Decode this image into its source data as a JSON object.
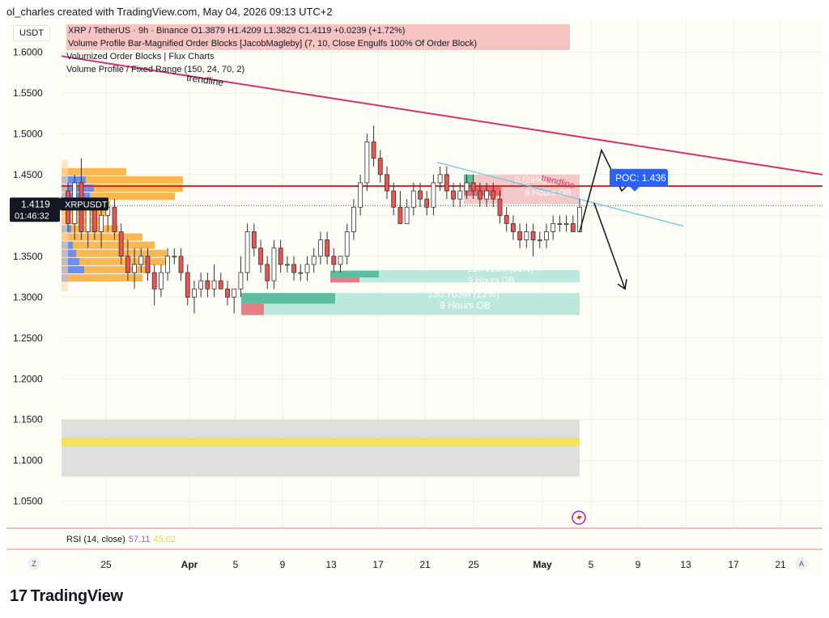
{
  "header": {
    "credit": "ol_charles created with TradingView.com, May 04, 2026 09:13 UTC+2"
  },
  "currency_button": "USDT",
  "legend": {
    "symbol_line": "XRP / TetherUS · 9h · Binance  O1.3879  H1.4209  L1.3829  C1.4119  +0.0239 (+1.72%)",
    "indicators": [
      "Volume Profile Bar-Magnified Order Blocks [JacobMagleby] (7, 10, Close Engulfs 100% Of Order Block)",
      "Volumized Order Blocks | Flux Charts",
      "Volume Profile / Fixed Range (150, 24, 70, 2)"
    ]
  },
  "price_tag": {
    "symbol": "XRPUSDT",
    "price": "1.4119",
    "countdown": "01:46:32"
  },
  "annotations": {
    "trendline_label": "trendline",
    "trendline_label2": "trendline",
    "poc": "POC: 1.436",
    "ob_top_text": "119.663M (60%)",
    "ob_top_sub": "9 Hours OB",
    "ob_bottom_text": "130.703M (22%)",
    "ob_bottom_sub": "9 Hours OB",
    "ob_red_text": "0.(24%)",
    "ob_red_sub": "9 Hours OB"
  },
  "rsi": {
    "label": "RSI (14, close)",
    "value1": "57.11",
    "value2": "45.02"
  },
  "buttons": {
    "left": "Z",
    "right": "A"
  },
  "footer": {
    "brand": "TradingView",
    "mark": "17"
  },
  "colors": {
    "up": "#26a69a",
    "down": "#ef5350",
    "candle": "#333333",
    "trend_pink": "#d6336c",
    "trend_blue": "#5fc3e4",
    "poc_blue": "#2962ff",
    "hline_red": "#d32f2f",
    "vp_orange": "#fbb040",
    "vp_blue": "#6d8ef0"
  },
  "chart_data": {
    "type": "candlestick",
    "symbol": "XRP / TetherUS",
    "timeframe": "9h",
    "ylim": [
      1.02,
      1.64
    ],
    "y_ticks": [
      "1.6000",
      "1.5500",
      "1.5000",
      "1.4500",
      "1.4000",
      "1.3500",
      "1.3000",
      "1.2500",
      "1.2000",
      "1.1500",
      "1.1000",
      "1.0500"
    ],
    "x_ticks": [
      "25",
      "Apr",
      "5",
      "9",
      "13",
      "17",
      "21",
      "25",
      "May",
      "5",
      "9",
      "13",
      "17",
      "21"
    ],
    "ohlc": [
      [
        1.43,
        1.44,
        1.38,
        1.39
      ],
      [
        1.39,
        1.45,
        1.37,
        1.44
      ],
      [
        1.44,
        1.47,
        1.37,
        1.38
      ],
      [
        1.38,
        1.42,
        1.36,
        1.41
      ],
      [
        1.41,
        1.42,
        1.37,
        1.38
      ],
      [
        1.38,
        1.41,
        1.36,
        1.4
      ],
      [
        1.4,
        1.42,
        1.38,
        1.41
      ],
      [
        1.41,
        1.42,
        1.37,
        1.38
      ],
      [
        1.38,
        1.39,
        1.34,
        1.35
      ],
      [
        1.35,
        1.37,
        1.32,
        1.33
      ],
      [
        1.33,
        1.36,
        1.31,
        1.34
      ],
      [
        1.34,
        1.36,
        1.33,
        1.35
      ],
      [
        1.35,
        1.36,
        1.32,
        1.33
      ],
      [
        1.33,
        1.34,
        1.29,
        1.31
      ],
      [
        1.31,
        1.34,
        1.3,
        1.33
      ],
      [
        1.33,
        1.36,
        1.32,
        1.35
      ],
      [
        1.35,
        1.36,
        1.34,
        1.35
      ],
      [
        1.35,
        1.36,
        1.32,
        1.33
      ],
      [
        1.33,
        1.34,
        1.29,
        1.3
      ],
      [
        1.3,
        1.32,
        1.28,
        1.31
      ],
      [
        1.31,
        1.33,
        1.3,
        1.32
      ],
      [
        1.32,
        1.33,
        1.3,
        1.31
      ],
      [
        1.31,
        1.34,
        1.3,
        1.32
      ],
      [
        1.32,
        1.33,
        1.31,
        1.31
      ],
      [
        1.31,
        1.32,
        1.29,
        1.3
      ],
      [
        1.3,
        1.31,
        1.28,
        1.31
      ],
      [
        1.31,
        1.35,
        1.3,
        1.33
      ],
      [
        1.33,
        1.39,
        1.32,
        1.38
      ],
      [
        1.38,
        1.39,
        1.35,
        1.36
      ],
      [
        1.36,
        1.37,
        1.33,
        1.34
      ],
      [
        1.34,
        1.35,
        1.31,
        1.32
      ],
      [
        1.32,
        1.37,
        1.31,
        1.36
      ],
      [
        1.36,
        1.37,
        1.33,
        1.34
      ],
      [
        1.34,
        1.35,
        1.33,
        1.34
      ],
      [
        1.34,
        1.35,
        1.32,
        1.33
      ],
      [
        1.33,
        1.34,
        1.32,
        1.33
      ],
      [
        1.33,
        1.35,
        1.32,
        1.34
      ],
      [
        1.34,
        1.36,
        1.33,
        1.35
      ],
      [
        1.35,
        1.38,
        1.34,
        1.37
      ],
      [
        1.37,
        1.38,
        1.34,
        1.35
      ],
      [
        1.35,
        1.36,
        1.33,
        1.34
      ],
      [
        1.34,
        1.35,
        1.33,
        1.35
      ],
      [
        1.35,
        1.39,
        1.34,
        1.38
      ],
      [
        1.38,
        1.42,
        1.37,
        1.41
      ],
      [
        1.41,
        1.45,
        1.4,
        1.44
      ],
      [
        1.44,
        1.5,
        1.43,
        1.49
      ],
      [
        1.49,
        1.51,
        1.46,
        1.47
      ],
      [
        1.47,
        1.48,
        1.44,
        1.45
      ],
      [
        1.45,
        1.46,
        1.42,
        1.43
      ],
      [
        1.43,
        1.44,
        1.4,
        1.41
      ],
      [
        1.41,
        1.43,
        1.39,
        1.39
      ],
      [
        1.39,
        1.42,
        1.39,
        1.41
      ],
      [
        1.41,
        1.44,
        1.4,
        1.43
      ],
      [
        1.43,
        1.44,
        1.41,
        1.42
      ],
      [
        1.42,
        1.43,
        1.4,
        1.41
      ],
      [
        1.41,
        1.45,
        1.4,
        1.44
      ],
      [
        1.44,
        1.46,
        1.43,
        1.45
      ],
      [
        1.45,
        1.46,
        1.42,
        1.43
      ],
      [
        1.43,
        1.44,
        1.41,
        1.42
      ],
      [
        1.42,
        1.44,
        1.41,
        1.43
      ],
      [
        1.43,
        1.45,
        1.42,
        1.44
      ],
      [
        1.44,
        1.45,
        1.42,
        1.43
      ],
      [
        1.43,
        1.44,
        1.41,
        1.42
      ],
      [
        1.42,
        1.44,
        1.41,
        1.43
      ],
      [
        1.43,
        1.44,
        1.41,
        1.42
      ],
      [
        1.42,
        1.43,
        1.39,
        1.4
      ],
      [
        1.4,
        1.41,
        1.38,
        1.39
      ],
      [
        1.39,
        1.4,
        1.37,
        1.38
      ],
      [
        1.38,
        1.39,
        1.36,
        1.37
      ],
      [
        1.37,
        1.39,
        1.36,
        1.38
      ],
      [
        1.38,
        1.39,
        1.35,
        1.37
      ],
      [
        1.37,
        1.38,
        1.36,
        1.37
      ],
      [
        1.37,
        1.39,
        1.36,
        1.38
      ],
      [
        1.38,
        1.4,
        1.37,
        1.39
      ],
      [
        1.39,
        1.4,
        1.38,
        1.39
      ],
      [
        1.39,
        1.4,
        1.38,
        1.39
      ],
      [
        1.39,
        1.4,
        1.38,
        1.38
      ],
      [
        1.38,
        1.42,
        1.38,
        1.41
      ]
    ],
    "last_price": 1.4119,
    "poc": 1.436
  }
}
